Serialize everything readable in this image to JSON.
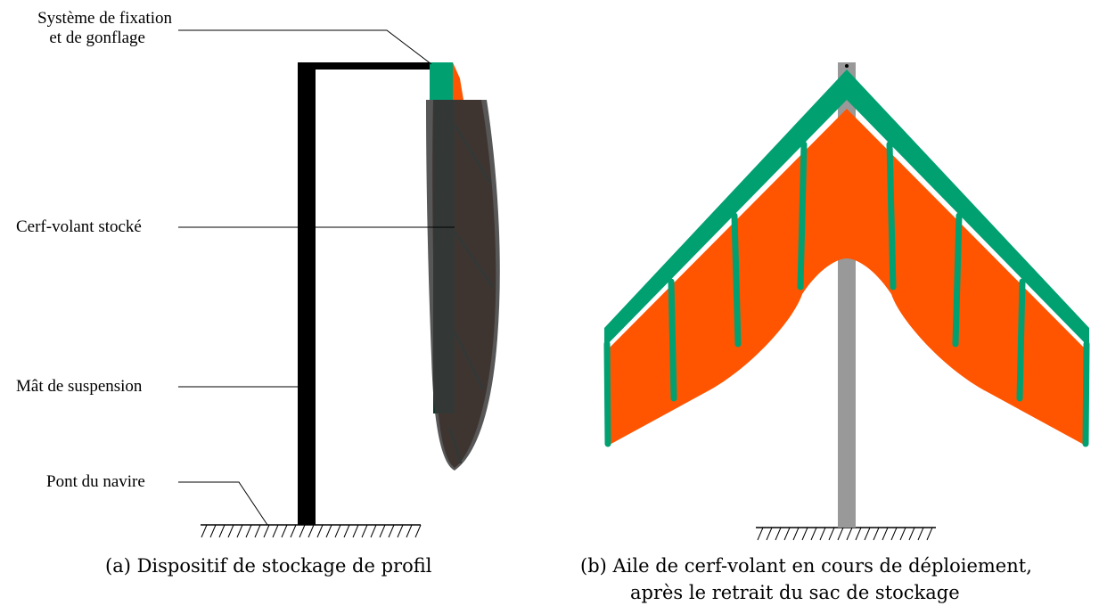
{
  "labels": {
    "fixation_line1": "Système de fixation",
    "fixation_line2": "et de gonflage",
    "stored_kite": "Cerf-volant stocké",
    "mast": "Mât de suspension",
    "deck": "Pont du navire"
  },
  "captions": {
    "a": "(a) Dispositif de stockage de profil",
    "b_line1": "(b) Aile de cerf-volant en cours de déploiement,",
    "b_line2": "après le retrait du sac de stockage"
  },
  "colors": {
    "kite_green": "#00a071",
    "kite_orange": "#ff5500",
    "storage_bag": "#3a3a3a",
    "stored_kite_fill": "#5a1f00",
    "mast_black": "#000000",
    "pole_gray": "#999999"
  }
}
